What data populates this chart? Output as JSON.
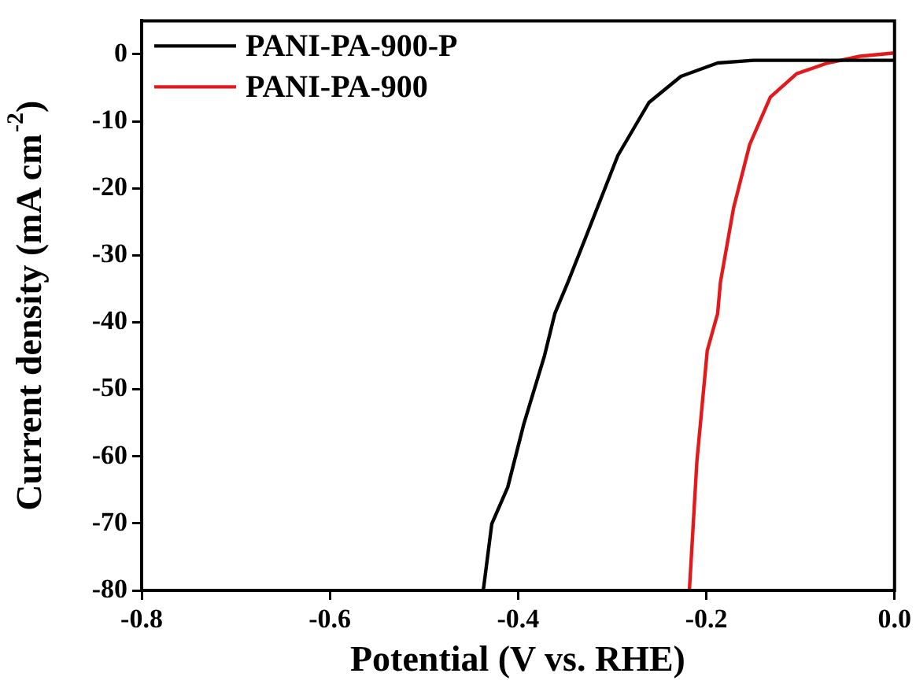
{
  "chart_data": {
    "type": "line",
    "xlabel": "Potential (V vs. RHE)",
    "ylabel": "Current density (mA cm$^{-2}$)",
    "xlim": [
      -0.8,
      0.0
    ],
    "xticks": [
      {
        "value": -0.8,
        "label": "-0.8"
      },
      {
        "value": -0.6,
        "label": "-0.6"
      },
      {
        "value": -0.4,
        "label": "-0.4"
      },
      {
        "value": -0.2,
        "label": "-0.2"
      },
      {
        "value": 0,
        "label": "0.0"
      }
    ],
    "ylim": [
      -80,
      5
    ],
    "yticks": [
      -80,
      -70,
      -60,
      -50,
      -40,
      -30,
      -20,
      -10,
      0
    ],
    "legend": "top left",
    "grid": false,
    "marker": "none",
    "line_style": "solid",
    "series": [
      {
        "name": "PANI-PA-900-P",
        "color": "#000000",
        "x": [
          -0.437,
          -0.428,
          -0.411,
          -0.394,
          -0.372,
          -0.361,
          -0.347,
          -0.327,
          -0.294,
          -0.261,
          -0.227,
          -0.188,
          -0.15,
          -0.1,
          0
        ],
        "values": [
          -80,
          -70.1,
          -64.6,
          -55.2,
          -45,
          -38.7,
          -34,
          -26.9,
          -15.1,
          -7.2,
          -3.3,
          -1.3,
          -0.9,
          -0.9,
          -0.9
        ]
      },
      {
        "name": "PANI-PA-900",
        "color": "#e31a1c",
        "x": [
          -0.218,
          -0.21,
          -0.199,
          -0.188,
          -0.185,
          -0.171,
          -0.154,
          -0.132,
          -0.104,
          -0.071,
          -0.037,
          0
        ],
        "values": [
          -80,
          -60.7,
          -44.2,
          -38.7,
          -34,
          -22.9,
          -13.5,
          -6.4,
          -2.9,
          -1.3,
          -0.3,
          0.2
        ]
      }
    ]
  }
}
